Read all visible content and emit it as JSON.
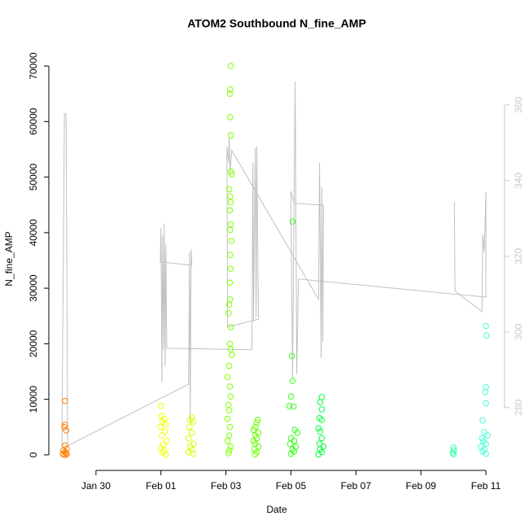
{
  "chart_data": {
    "type": "scatter",
    "title": "ATOM2 Southbound N_fine_AMP",
    "xlabel": "Date",
    "ylabel": "N_fine_AMP",
    "xlim": [
      28.55,
      42.575
    ],
    "xticks": [
      {
        "value": 30,
        "label": "Jan 30"
      },
      {
        "value": 32,
        "label": "Feb 01"
      },
      {
        "value": 34,
        "label": "Feb 03"
      },
      {
        "value": 36,
        "label": "Feb 05"
      },
      {
        "value": 38,
        "label": "Feb 07"
      },
      {
        "value": 40,
        "label": "Feb 09"
      },
      {
        "value": 42,
        "label": "Feb 11"
      }
    ],
    "ylim": [
      -2800,
      72800
    ],
    "yticks": [
      0,
      10000,
      20000,
      30000,
      40000,
      50000,
      60000,
      70000
    ],
    "y2lim": [
      263.4,
      374.4
    ],
    "y2ticks": [
      280,
      300,
      320,
      340,
      360
    ],
    "y2color": "#c8c8c8",
    "series": [
      {
        "type": "line",
        "axis": "y2",
        "color": "#c0c0c0",
        "x": [
          28.95,
          29.03,
          29.08,
          29.13,
          32.85,
          32.88,
          32.9,
          32.93,
          32.95,
          31.98,
          32.0,
          32.03,
          32.05,
          32.08,
          32.1,
          32.13,
          32.15,
          32.18,
          34.8,
          34.83,
          34.85,
          34.9,
          34.93,
          34.95,
          35.0,
          34.05,
          34.03,
          34.08,
          34.1,
          34.13,
          34.18,
          36.85,
          36.88,
          36.93,
          36.95,
          36.98,
          37.0,
          36.1,
          36.0,
          36.05,
          36.13,
          36.18,
          36.23,
          42.0,
          42.0,
          41.95,
          41.9,
          41.88,
          41.05,
          41.03
        ],
        "values": [
          269.5,
          357.6,
          357.6,
          269.9,
          286.2,
          321.1,
          275.9,
          321.9,
          317.6,
          318.5,
          327.5,
          286.7,
          325.4,
          295.3,
          328.6,
          291.0,
          323.2,
          295.7,
          295.3,
          344.7,
          302.8,
          348.6,
          303.9,
          349.0,
          303.4,
          301.3,
          349.0,
          344.7,
          351.2,
          342.6,
          348.0,
          308.6,
          344.7,
          293.1,
          338.3,
          297.4,
          333.5,
          334.0,
          337.2,
          287.7,
          366.2,
          288.8,
          314.0,
          309.2,
          337.0,
          321.1,
          325.8,
          305.4,
          310.8,
          334.4
        ]
      },
      {
        "color": "#ff7f00",
        "x": [
          29.05,
          29.05,
          29.03,
          29.08,
          29.05,
          29.1,
          29.0,
          29.05,
          29.08,
          28.98,
          29.1,
          29.03
        ],
        "values": [
          9700,
          5400,
          5000,
          4400,
          1700,
          1100,
          800,
          500,
          300,
          200,
          100,
          0
        ]
      },
      {
        "color": "#f2ff00",
        "x": [
          32.0,
          32.02,
          32.1,
          32.05,
          32.15,
          31.98,
          32.12,
          32.03,
          32.18,
          32.07,
          32.0,
          32.1,
          32.05,
          32.15
        ],
        "values": [
          8800,
          7000,
          6500,
          6000,
          5500,
          5000,
          4200,
          3500,
          2500,
          1800,
          1200,
          800,
          400,
          100
        ]
      },
      {
        "color": "#d9ff00",
        "x": [
          32.95,
          32.9,
          33.0,
          32.88,
          32.95,
          32.85,
          33.0,
          32.9,
          32.95,
          32.85,
          32.98
        ],
        "values": [
          6800,
          6200,
          6000,
          5000,
          4000,
          3000,
          2000,
          1500,
          1000,
          500,
          200
        ]
      },
      {
        "color": "#80ff00",
        "x": [
          34.15,
          34.13,
          34.12,
          34.13,
          34.15,
          34.15,
          34.18,
          34.1,
          34.13,
          34.15,
          34.12,
          34.15,
          34.13,
          34.17,
          34.13,
          34.15,
          34.12,
          34.13,
          34.1,
          34.08,
          34.15,
          34.12,
          34.15,
          34.18,
          34.1,
          34.05,
          34.12,
          34.15,
          34.08,
          34.1,
          34.05,
          34.12,
          34.1,
          34.05,
          34.15,
          34.1,
          34.08
        ],
        "values": [
          70000,
          65800,
          65000,
          60800,
          57500,
          51000,
          50500,
          47800,
          46500,
          45500,
          44000,
          41500,
          40500,
          38500,
          36000,
          33500,
          31000,
          28000,
          27000,
          25500,
          23000,
          20000,
          19000,
          18000,
          16000,
          14000,
          12300,
          10500,
          9000,
          8000,
          6500,
          5000,
          3500,
          2500,
          1500,
          800,
          300
        ]
      },
      {
        "color": "#66ff00",
        "x": [
          34.98,
          34.95,
          34.9,
          34.85,
          35.0,
          34.9,
          34.95,
          34.85,
          34.9,
          35.0,
          34.88,
          34.95,
          34.9
        ],
        "values": [
          6300,
          5800,
          5000,
          4500,
          4000,
          3500,
          3000,
          2500,
          2000,
          1500,
          1000,
          500,
          100
        ]
      },
      {
        "color": "#33ff19",
        "x": [
          36.05,
          36.03,
          36.05,
          36.0,
          35.95,
          36.08,
          36.12,
          36.2,
          36.0,
          36.1,
          35.98,
          36.15,
          36.05,
          36.1,
          36.0
        ],
        "values": [
          42000,
          17800,
          13300,
          10500,
          8800,
          8700,
          4500,
          4000,
          3000,
          2500,
          2000,
          1500,
          1000,
          600,
          200
        ]
      },
      {
        "color": "#00ff40",
        "x": [
          36.95,
          36.9,
          36.95,
          36.88,
          36.95,
          36.85,
          36.9,
          36.95,
          36.88,
          37.0,
          36.9,
          36.95,
          36.85
        ],
        "values": [
          10400,
          9500,
          8200,
          6600,
          6300,
          4800,
          4200,
          3000,
          2000,
          1500,
          1000,
          500,
          100
        ]
      },
      {
        "color": "#33ffaa",
        "x": [
          41.0,
          41.02,
          40.98,
          41.0
        ],
        "values": [
          1300,
          800,
          400,
          100
        ]
      },
      {
        "color": "#3fffd5",
        "x": [
          42.0,
          42.02,
          42.0,
          41.98,
          42.0,
          41.9,
          41.95,
          42.05,
          41.88,
          41.92,
          42.0,
          41.85,
          41.95,
          41.9,
          42.0
        ],
        "values": [
          23200,
          21500,
          12200,
          11300,
          9300,
          6200,
          4100,
          3500,
          3000,
          2500,
          2000,
          1500,
          1000,
          600,
          200
        ]
      }
    ]
  }
}
